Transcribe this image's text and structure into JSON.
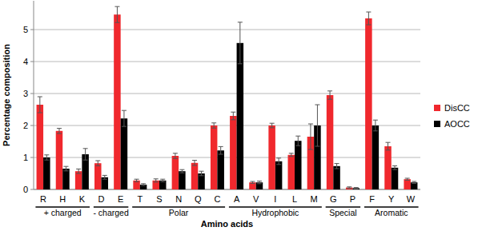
{
  "chart_data": {
    "type": "bar",
    "x_label": "Amino acids",
    "y_label": "Percentage composition",
    "categories": [
      "R",
      "H",
      "K",
      "D",
      "E",
      "T",
      "S",
      "N",
      "Q",
      "C",
      "A",
      "V",
      "I",
      "L",
      "M",
      "G",
      "P",
      "F",
      "Y",
      "W"
    ],
    "groups": [
      {
        "label": "+ charged",
        "categories": [
          "R",
          "H",
          "K"
        ]
      },
      {
        "label": "- charged",
        "categories": [
          "D",
          "E"
        ]
      },
      {
        "label": "Polar",
        "categories": [
          "T",
          "S",
          "N",
          "Q",
          "C"
        ]
      },
      {
        "label": "Hydrophobic",
        "categories": [
          "A",
          "V",
          "I",
          "L",
          "M"
        ]
      },
      {
        "label": "Special",
        "categories": [
          "G",
          "P"
        ]
      },
      {
        "label": "Aromatic",
        "categories": [
          "F",
          "Y",
          "W"
        ]
      }
    ],
    "series": [
      {
        "name": "DisCC",
        "color": "#f0282d",
        "values": [
          2.65,
          1.83,
          0.57,
          0.82,
          5.47,
          0.28,
          0.28,
          1.05,
          0.83,
          2.0,
          2.3,
          0.22,
          2.0,
          1.08,
          1.65,
          2.95,
          0.06,
          5.35,
          1.35,
          0.32
        ],
        "errors": [
          0.25,
          0.08,
          0.07,
          0.08,
          0.25,
          0.04,
          0.05,
          0.08,
          0.08,
          0.08,
          0.12,
          0.03,
          0.07,
          0.05,
          0.4,
          0.13,
          0.02,
          0.2,
          0.12,
          0.03
        ]
      },
      {
        "name": "AOCC",
        "color": "#000000",
        "values": [
          1.0,
          0.65,
          1.1,
          0.38,
          2.22,
          0.15,
          0.28,
          0.57,
          0.5,
          1.22,
          4.58,
          0.22,
          0.88,
          1.52,
          2.0,
          0.73,
          0.04,
          2.0,
          0.68,
          0.22
        ],
        "errors": [
          0.08,
          0.07,
          0.18,
          0.06,
          0.25,
          0.03,
          0.04,
          0.05,
          0.07,
          0.12,
          0.65,
          0.04,
          0.1,
          0.15,
          0.65,
          0.08,
          0.02,
          0.17,
          0.06,
          0.03
        ]
      }
    ],
    "ylim": [
      0,
      5.9
    ],
    "yticks": [
      0,
      1,
      2,
      3,
      4,
      5
    ],
    "grid": true,
    "legend": "right"
  }
}
